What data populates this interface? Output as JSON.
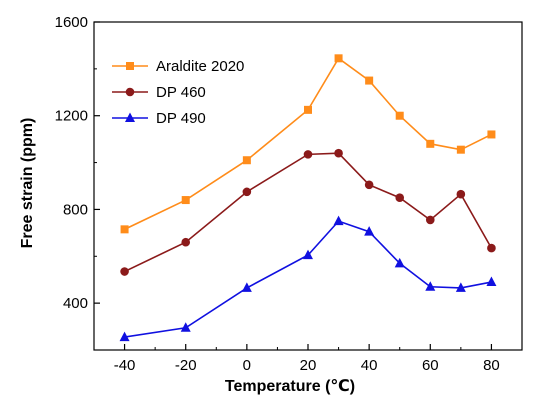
{
  "chart_data": {
    "type": "line",
    "xlabel": "Temperature (℃)",
    "ylabel": "Free strain (ppm)",
    "x": [
      -40,
      -20,
      0,
      20,
      30,
      40,
      50,
      60,
      70,
      80
    ],
    "xticks": [
      "-40",
      "-20",
      "0",
      "20",
      "40",
      "60",
      "80"
    ],
    "yticks": [
      "400",
      "800",
      "1200",
      "1600"
    ],
    "xlim": [
      -50,
      90
    ],
    "ylim": [
      200,
      1600
    ],
    "legend_position": "top-left",
    "grid": false,
    "series": [
      {
        "name": "Araldite 2020",
        "color": "#FF8C1A",
        "marker": "square",
        "values": [
          715,
          840,
          1010,
          1225,
          1445,
          1350,
          1200,
          1080,
          1055,
          1120
        ]
      },
      {
        "name": "DP 460",
        "color": "#8B1A1A",
        "marker": "circle",
        "values": [
          535,
          660,
          875,
          1035,
          1040,
          905,
          850,
          755,
          865,
          635
        ]
      },
      {
        "name": "DP 490",
        "color": "#1010E0",
        "marker": "triangle",
        "values": [
          255,
          295,
          465,
          605,
          750,
          705,
          570,
          470,
          465,
          490
        ]
      }
    ]
  }
}
